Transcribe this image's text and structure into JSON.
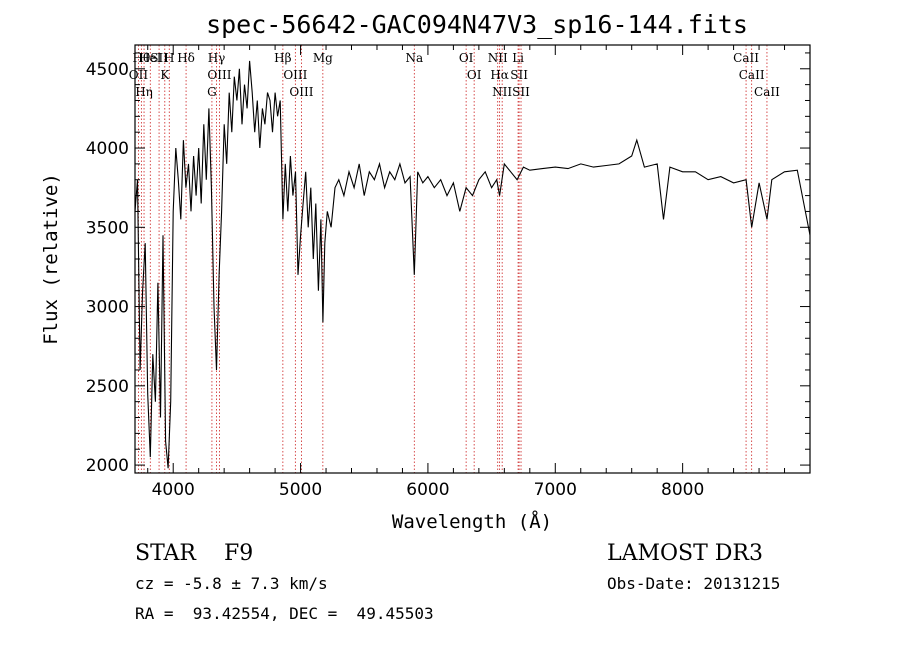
{
  "chart_data": {
    "type": "line",
    "title": "spec-56642-GAC094N47V3_sp16-144.fits",
    "xlabel": "Wavelength (Å)",
    "ylabel": "Flux (relative)",
    "xlim": [
      3700,
      9000
    ],
    "ylim": [
      1950,
      4650
    ],
    "x_ticks": [
      4000,
      5000,
      6000,
      7000,
      8000
    ],
    "x_tick_labels": [
      "4000",
      "5000",
      "6000",
      "7000",
      "8000"
    ],
    "y_ticks": [
      2000,
      2500,
      3000,
      3500,
      4000,
      4500
    ],
    "y_tick_labels": [
      "2000",
      "2500",
      "3000",
      "3500",
      "4000",
      "4500"
    ],
    "grid": false,
    "legend": "none",
    "line_color": "#000000",
    "marker_color": "#cc2222",
    "series": [
      {
        "x": [
          3700,
          3720,
          3740,
          3760,
          3780,
          3800,
          3820,
          3840,
          3860,
          3880,
          3900,
          3920,
          3940,
          3960,
          3980,
          4000,
          4020,
          4040,
          4060,
          4080,
          4100,
          4120,
          4140,
          4160,
          4180,
          4200,
          4220,
          4240,
          4260,
          4280,
          4300,
          4320,
          4340,
          4360,
          4380,
          4400,
          4420,
          4440,
          4460,
          4480,
          4500,
          4520,
          4540,
          4560,
          4580,
          4600,
          4620,
          4640,
          4660,
          4680,
          4700,
          4720,
          4740,
          4760,
          4780,
          4800,
          4820,
          4840,
          4861,
          4880,
          4900,
          4920,
          4940,
          4960,
          4980,
          5000,
          5020,
          5040,
          5060,
          5080,
          5100,
          5120,
          5140,
          5160,
          5175,
          5190,
          5210,
          5240,
          5270,
          5300,
          5340,
          5380,
          5420,
          5460,
          5500,
          5540,
          5580,
          5620,
          5660,
          5700,
          5740,
          5780,
          5820,
          5860,
          5893,
          5920,
          5960,
          6000,
          6050,
          6100,
          6150,
          6200,
          6250,
          6300,
          6350,
          6400,
          6450,
          6500,
          6540,
          6563,
          6600,
          6650,
          6700,
          6750,
          6800,
          6900,
          7000,
          7100,
          7200,
          7300,
          7400,
          7500,
          7600,
          7640,
          7700,
          7800,
          7850,
          7900,
          8000,
          8100,
          8200,
          8300,
          8400,
          8498,
          8542,
          8600,
          8662,
          8700,
          8800,
          8900,
          9000
        ],
        "y": [
          3600,
          3800,
          2600,
          3100,
          3400,
          2450,
          2050,
          2700,
          2400,
          3150,
          2300,
          3450,
          2150,
          1980,
          2400,
          3600,
          4000,
          3800,
          3550,
          4050,
          3750,
          3900,
          3600,
          3950,
          3700,
          4000,
          3650,
          4150,
          3800,
          4250,
          3750,
          3000,
          2600,
          3200,
          3600,
          4150,
          3900,
          4350,
          4100,
          4450,
          4300,
          4500,
          4150,
          4400,
          4250,
          4550,
          4350,
          4100,
          4300,
          4000,
          4250,
          4150,
          4350,
          4300,
          4100,
          4350,
          4200,
          4300,
          3550,
          3900,
          3600,
          3950,
          3700,
          3850,
          3200,
          3450,
          3650,
          3850,
          3500,
          3750,
          3300,
          3650,
          3100,
          3550,
          2900,
          3400,
          3600,
          3500,
          3750,
          3800,
          3700,
          3850,
          3750,
          3900,
          3700,
          3850,
          3800,
          3900,
          3750,
          3850,
          3800,
          3900,
          3780,
          3820,
          3200,
          3850,
          3780,
          3820,
          3750,
          3800,
          3700,
          3780,
          3600,
          3750,
          3700,
          3800,
          3850,
          3750,
          3800,
          3700,
          3900,
          3850,
          3800,
          3880,
          3860,
          3870,
          3880,
          3870,
          3900,
          3880,
          3890,
          3900,
          3950,
          4050,
          3880,
          3900,
          3550,
          3880,
          3850,
          3850,
          3800,
          3820,
          3780,
          3800,
          3500,
          3780,
          3550,
          3800,
          3850,
          3860,
          3450
        ]
      }
    ],
    "spectral_lines": [
      {
        "x": 3750,
        "label": "Hθ"
      },
      {
        "x": 3727,
        "label": "OII"
      },
      {
        "x": 3771,
        "label": "Hη"
      },
      {
        "x": 3820,
        "label": "HeI"
      },
      {
        "x": 3934,
        "label": "K"
      },
      {
        "x": 3969,
        "label": "H"
      },
      {
        "x": 3889,
        "label": "SII"
      },
      {
        "x": 4101,
        "label": "Hδ"
      },
      {
        "x": 4340,
        "label": "Hγ"
      },
      {
        "x": 4363,
        "label": "OIII"
      },
      {
        "x": 4304,
        "label": "G"
      },
      {
        "x": 4861,
        "label": "Hβ"
      },
      {
        "x": 4959,
        "label": "OIII"
      },
      {
        "x": 5007,
        "label": "OIII"
      },
      {
        "x": 5175,
        "label": "Mg"
      },
      {
        "x": 5893,
        "label": "Na"
      },
      {
        "x": 6300,
        "label": "OI"
      },
      {
        "x": 6363,
        "label": "OI"
      },
      {
        "x": 6548,
        "label": "NII"
      },
      {
        "x": 6563,
        "label": "Hα"
      },
      {
        "x": 6583,
        "label": "NII"
      },
      {
        "x": 6708,
        "label": "Li"
      },
      {
        "x": 6716,
        "label": "SII"
      },
      {
        "x": 6731,
        "label": "SII"
      },
      {
        "x": 8498,
        "label": "CaII"
      },
      {
        "x": 8542,
        "label": "CaII"
      },
      {
        "x": 8662,
        "label": "CaII"
      }
    ]
  },
  "info": {
    "class_line": "STAR    F9",
    "redshift_line": "cz = -5.8 ± 7.3 km/s",
    "coords_line": "RA =  93.42554, DEC =  49.45503",
    "survey": "LAMOST DR3",
    "obs_date": "Obs-Date: 20131215"
  }
}
